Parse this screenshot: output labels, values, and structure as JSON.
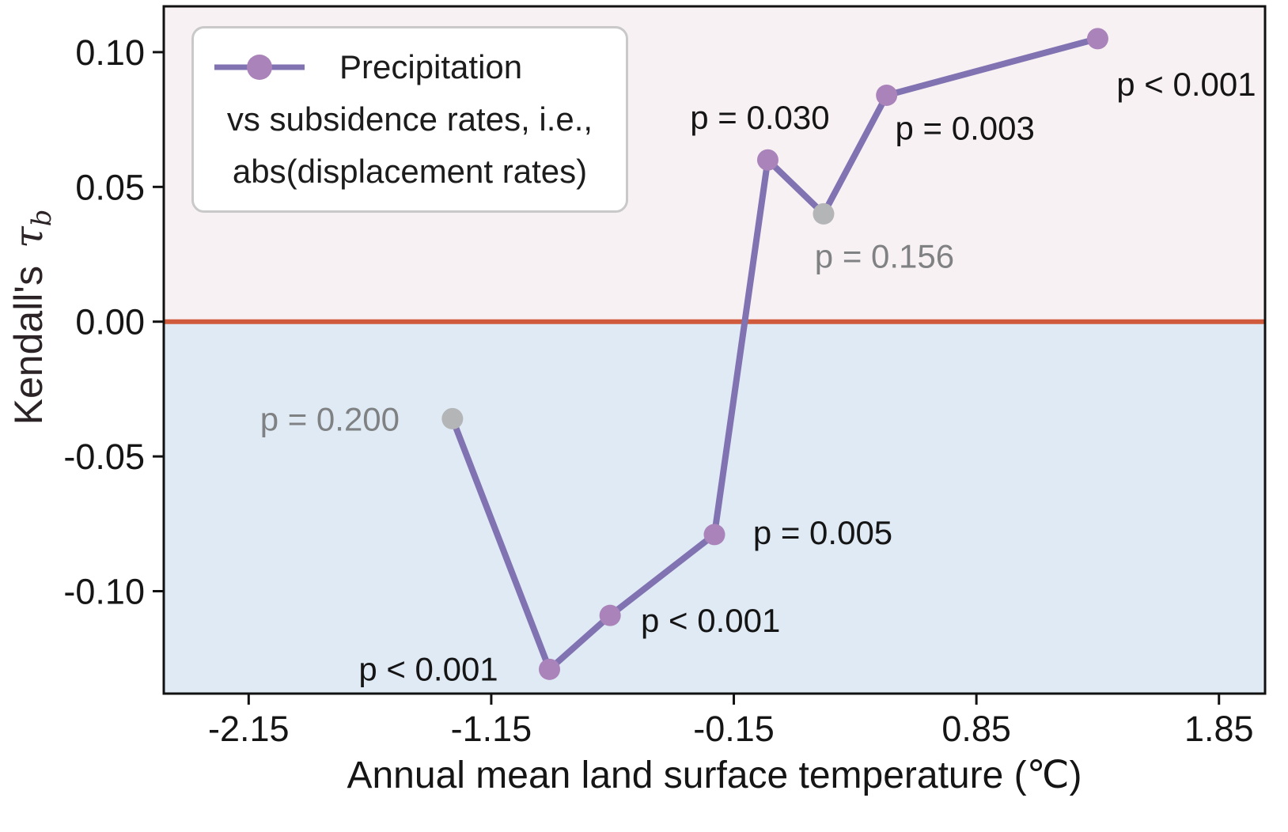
{
  "legend": {
    "line1": "Precipitation",
    "line2": "vs subsidence rates, i.e.,",
    "line3": "abs(displacement rates)"
  },
  "chart_data": {
    "type": "line",
    "title": "",
    "xlabel": "Annual mean land surface temperature (℃)",
    "ylabel_prefix": "Kendall's",
    "ylabel_symbol": "τ",
    "ylabel_subscript": "b",
    "series_name": "Precipitation vs subsidence rates, i.e., abs(displacement rates)",
    "points": [
      {
        "x": -1.31,
        "y": -0.036,
        "p": "p = 0.200",
        "significant": false,
        "label_offset": [
          -155,
          0
        ]
      },
      {
        "x": -0.91,
        "y": -0.129,
        "p": "p < 0.001",
        "significant": true,
        "label_offset": [
          -153,
          -1
        ]
      },
      {
        "x": -0.66,
        "y": -0.109,
        "p": "p < 0.001",
        "significant": true,
        "label_offset": [
          127,
          6
        ]
      },
      {
        "x": -0.23,
        "y": -0.079,
        "p": "p = 0.005",
        "significant": true,
        "label_offset": [
          137,
          -3
        ]
      },
      {
        "x": -0.01,
        "y": 0.06,
        "p": "p = 0.030",
        "significant": true,
        "label_offset": [
          -10,
          -54
        ]
      },
      {
        "x": 0.22,
        "y": 0.04,
        "p": "p = 0.156",
        "significant": false,
        "label_offset": [
          77,
          53
        ]
      },
      {
        "x": 0.48,
        "y": 0.084,
        "p": "p = 0.003",
        "significant": true,
        "label_offset": [
          99,
          41
        ]
      },
      {
        "x": 1.35,
        "y": 0.105,
        "p": "p < 0.001",
        "significant": true,
        "label_offset": [
          112,
          57
        ]
      }
    ],
    "xticks": [
      {
        "label": "-2.15",
        "value": -2.15
      },
      {
        "label": "-1.15",
        "value": -1.15
      },
      {
        "label": "-0.15",
        "value": -0.15
      },
      {
        "label": "0.85",
        "value": 0.85
      },
      {
        "label": "1.85",
        "value": 1.85
      }
    ],
    "yticks": [
      {
        "label": "0.10",
        "value": 0.1
      },
      {
        "label": "0.05",
        "value": 0.05
      },
      {
        "label": "0.00",
        "value": 0.0
      },
      {
        "label": "-0.05",
        "value": -0.05
      },
      {
        "label": "-0.10",
        "value": -0.1
      }
    ],
    "xlim": [
      -2.5,
      2.04
    ],
    "ylim": [
      -0.138,
      0.117
    ],
    "zero_line_y": 0,
    "grid": false,
    "legend_position": "upper left",
    "colors": {
      "line": "#8172b2",
      "marker": "#a983b9",
      "marker_nonsignificant": "#b3b5b6",
      "zero_line": "#d05a3c",
      "bg_positive": "#f8f1f4",
      "bg_negative": "#dfeaf4",
      "axis": "#111111",
      "text": "#151515",
      "text_nonsignificant": "#7f8183",
      "legend_border": "#c9c9c9"
    }
  }
}
